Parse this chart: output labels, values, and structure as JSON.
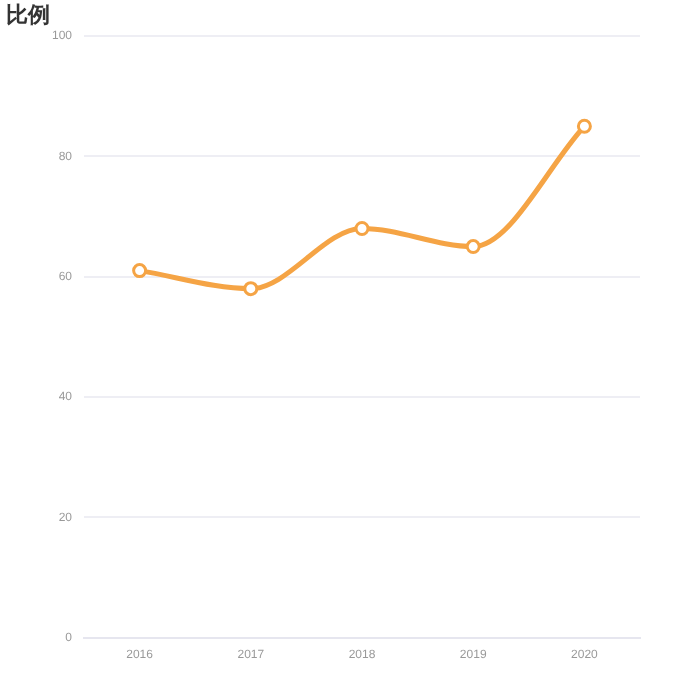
{
  "chart_data": {
    "type": "line",
    "ylabel": "比例",
    "categories": [
      "2016",
      "2017",
      "2018",
      "2019",
      "2020"
    ],
    "series": [
      {
        "color": "#f5a445",
        "values": [
          61,
          58,
          68,
          65,
          85
        ]
      }
    ],
    "ylim": [
      0,
      100
    ],
    "yticks": [
      0,
      20,
      40,
      60,
      80,
      100
    ],
    "grid": "y",
    "legend": false,
    "marker": "circle",
    "line_style": "solid"
  }
}
